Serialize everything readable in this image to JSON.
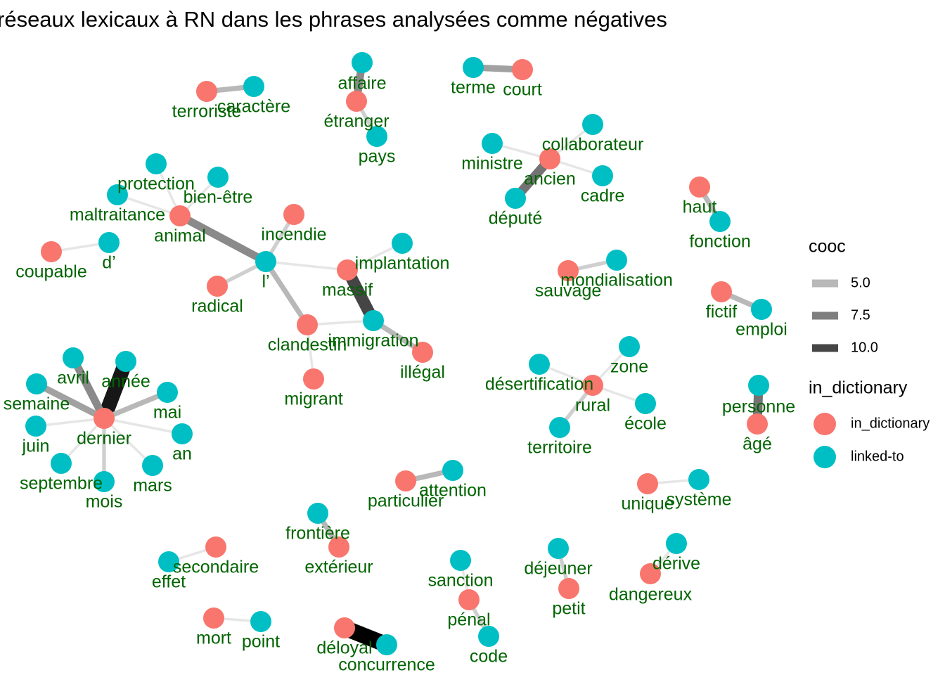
{
  "title": "réseaux lexicaux à RN dans les phrases analysées comme négatives",
  "label_color": "#006400",
  "groups": [
    {
      "name": "in_dictionary",
      "color": "#F8766D"
    },
    {
      "name": "linked-to",
      "color": "#00BFC4"
    }
  ],
  "legend": {
    "cooc_title": "cooc",
    "cooc_ticks": [
      {
        "value": 5,
        "label": "5.0"
      },
      {
        "value": 7.5,
        "label": "7.5"
      },
      {
        "value": 10,
        "label": "10.0"
      }
    ],
    "group_title": "in_dictionary"
  },
  "nodes": [
    {
      "label": "terroriste",
      "group": 0
    },
    {
      "label": "caractère",
      "group": 1
    },
    {
      "label": "affaire",
      "group": 1
    },
    {
      "label": "étranger",
      "group": 0
    },
    {
      "label": "pays",
      "group": 1
    },
    {
      "label": "terme",
      "group": 1
    },
    {
      "label": "court",
      "group": 0
    },
    {
      "label": "collaborateur",
      "group": 1
    },
    {
      "label": "ministre",
      "group": 1
    },
    {
      "label": "ancien",
      "group": 0
    },
    {
      "label": "cadre",
      "group": 1
    },
    {
      "label": "député",
      "group": 1
    },
    {
      "label": "haut",
      "group": 0
    },
    {
      "label": "fonction",
      "group": 1
    },
    {
      "label": "protection",
      "group": 1
    },
    {
      "label": "bien-être",
      "group": 1
    },
    {
      "label": "maltraitance",
      "group": 1
    },
    {
      "label": "animal",
      "group": 0
    },
    {
      "label": "incendie",
      "group": 0
    },
    {
      "label": "d’",
      "group": 1
    },
    {
      "label": "coupable",
      "group": 0
    },
    {
      "label": "l’",
      "group": 1
    },
    {
      "label": "implantation",
      "group": 1
    },
    {
      "label": "massif",
      "group": 0
    },
    {
      "label": "radical",
      "group": 0
    },
    {
      "label": "clandestin",
      "group": 0
    },
    {
      "label": "immigration",
      "group": 1
    },
    {
      "label": "illégal",
      "group": 0
    },
    {
      "label": "migrant",
      "group": 0
    },
    {
      "label": "mondialisation",
      "group": 1
    },
    {
      "label": "sauvage",
      "group": 0
    },
    {
      "label": "fictif",
      "group": 0
    },
    {
      "label": "emploi",
      "group": 1
    },
    {
      "label": "année",
      "group": 1
    },
    {
      "label": "avril",
      "group": 1
    },
    {
      "label": "semaine",
      "group": 1
    },
    {
      "label": "mai",
      "group": 1
    },
    {
      "label": "dernier",
      "group": 0
    },
    {
      "label": "juin",
      "group": 1
    },
    {
      "label": "an",
      "group": 1
    },
    {
      "label": "septembre",
      "group": 1
    },
    {
      "label": "mars",
      "group": 1
    },
    {
      "label": "mois",
      "group": 1
    },
    {
      "label": "zone",
      "group": 1
    },
    {
      "label": "désertification",
      "group": 1
    },
    {
      "label": "rural",
      "group": 0
    },
    {
      "label": "école",
      "group": 1
    },
    {
      "label": "territoire",
      "group": 1
    },
    {
      "label": "personne",
      "group": 1
    },
    {
      "label": "âgé",
      "group": 0
    },
    {
      "label": "attention",
      "group": 1
    },
    {
      "label": "particulier",
      "group": 0
    },
    {
      "label": "système",
      "group": 1
    },
    {
      "label": "unique",
      "group": 0
    },
    {
      "label": "frontière",
      "group": 1
    },
    {
      "label": "extérieur",
      "group": 0
    },
    {
      "label": "secondaire",
      "group": 0
    },
    {
      "label": "effet",
      "group": 1
    },
    {
      "label": "déjeuner",
      "group": 1
    },
    {
      "label": "dérive",
      "group": 1
    },
    {
      "label": "sanction",
      "group": 1
    },
    {
      "label": "petit",
      "group": 0
    },
    {
      "label": "dangereux",
      "group": 0
    },
    {
      "label": "pénal",
      "group": 0
    },
    {
      "label": "mort",
      "group": 0
    },
    {
      "label": "point",
      "group": 1
    },
    {
      "label": "déloyal",
      "group": 0
    },
    {
      "label": "concurrence",
      "group": 1
    },
    {
      "label": "code",
      "group": 1
    }
  ],
  "edges": [
    {
      "source": 0,
      "target": 1,
      "cooc": 5
    },
    {
      "source": 2,
      "target": 3,
      "cooc": 7
    },
    {
      "source": 3,
      "target": 4,
      "cooc": 4
    },
    {
      "source": 5,
      "target": 6,
      "cooc": 6
    },
    {
      "source": 9,
      "target": 7,
      "cooc": 3
    },
    {
      "source": 8,
      "target": 9,
      "cooc": 3
    },
    {
      "source": 9,
      "target": 10,
      "cooc": 3
    },
    {
      "source": 9,
      "target": 11,
      "cooc": 8
    },
    {
      "source": 12,
      "target": 13,
      "cooc": 5
    },
    {
      "source": 14,
      "target": 17,
      "cooc": 3
    },
    {
      "source": 15,
      "target": 17,
      "cooc": 3
    },
    {
      "source": 16,
      "target": 17,
      "cooc": 3
    },
    {
      "source": 17,
      "target": 21,
      "cooc": 7
    },
    {
      "source": 19,
      "target": 20,
      "cooc": 3
    },
    {
      "source": 18,
      "target": 21,
      "cooc": 4
    },
    {
      "source": 21,
      "target": 24,
      "cooc": 4
    },
    {
      "source": 21,
      "target": 23,
      "cooc": 3
    },
    {
      "source": 21,
      "target": 25,
      "cooc": 5
    },
    {
      "source": 22,
      "target": 23,
      "cooc": 3
    },
    {
      "source": 23,
      "target": 26,
      "cooc": 10
    },
    {
      "source": 25,
      "target": 26,
      "cooc": 3
    },
    {
      "source": 26,
      "target": 27,
      "cooc": 5
    },
    {
      "source": 25,
      "target": 28,
      "cooc": 3
    },
    {
      "source": 29,
      "target": 30,
      "cooc": 4
    },
    {
      "source": 31,
      "target": 32,
      "cooc": 5
    },
    {
      "source": 37,
      "target": 33,
      "cooc": 12
    },
    {
      "source": 37,
      "target": 34,
      "cooc": 7
    },
    {
      "source": 37,
      "target": 35,
      "cooc": 6
    },
    {
      "source": 37,
      "target": 36,
      "cooc": 5
    },
    {
      "source": 37,
      "target": 38,
      "cooc": 3
    },
    {
      "source": 37,
      "target": 39,
      "cooc": 3
    },
    {
      "source": 37,
      "target": 40,
      "cooc": 3
    },
    {
      "source": 37,
      "target": 41,
      "cooc": 3
    },
    {
      "source": 37,
      "target": 42,
      "cooc": 4
    },
    {
      "source": 45,
      "target": 43,
      "cooc": 3
    },
    {
      "source": 45,
      "target": 44,
      "cooc": 3
    },
    {
      "source": 45,
      "target": 46,
      "cooc": 3
    },
    {
      "source": 45,
      "target": 47,
      "cooc": 4
    },
    {
      "source": 48,
      "target": 49,
      "cooc": 8
    },
    {
      "source": 50,
      "target": 51,
      "cooc": 5
    },
    {
      "source": 52,
      "target": 53,
      "cooc": 3
    },
    {
      "source": 54,
      "target": 55,
      "cooc": 5
    },
    {
      "source": 56,
      "target": 57,
      "cooc": 3
    },
    {
      "source": 58,
      "target": 61,
      "cooc": 4
    },
    {
      "source": 59,
      "target": 62,
      "cooc": 3
    },
    {
      "source": 60,
      "target": 63,
      "cooc": 3
    },
    {
      "source": 63,
      "target": 68,
      "cooc": 4
    },
    {
      "source": 64,
      "target": 65,
      "cooc": 3
    },
    {
      "source": 66,
      "target": 67,
      "cooc": 13
    }
  ]
}
